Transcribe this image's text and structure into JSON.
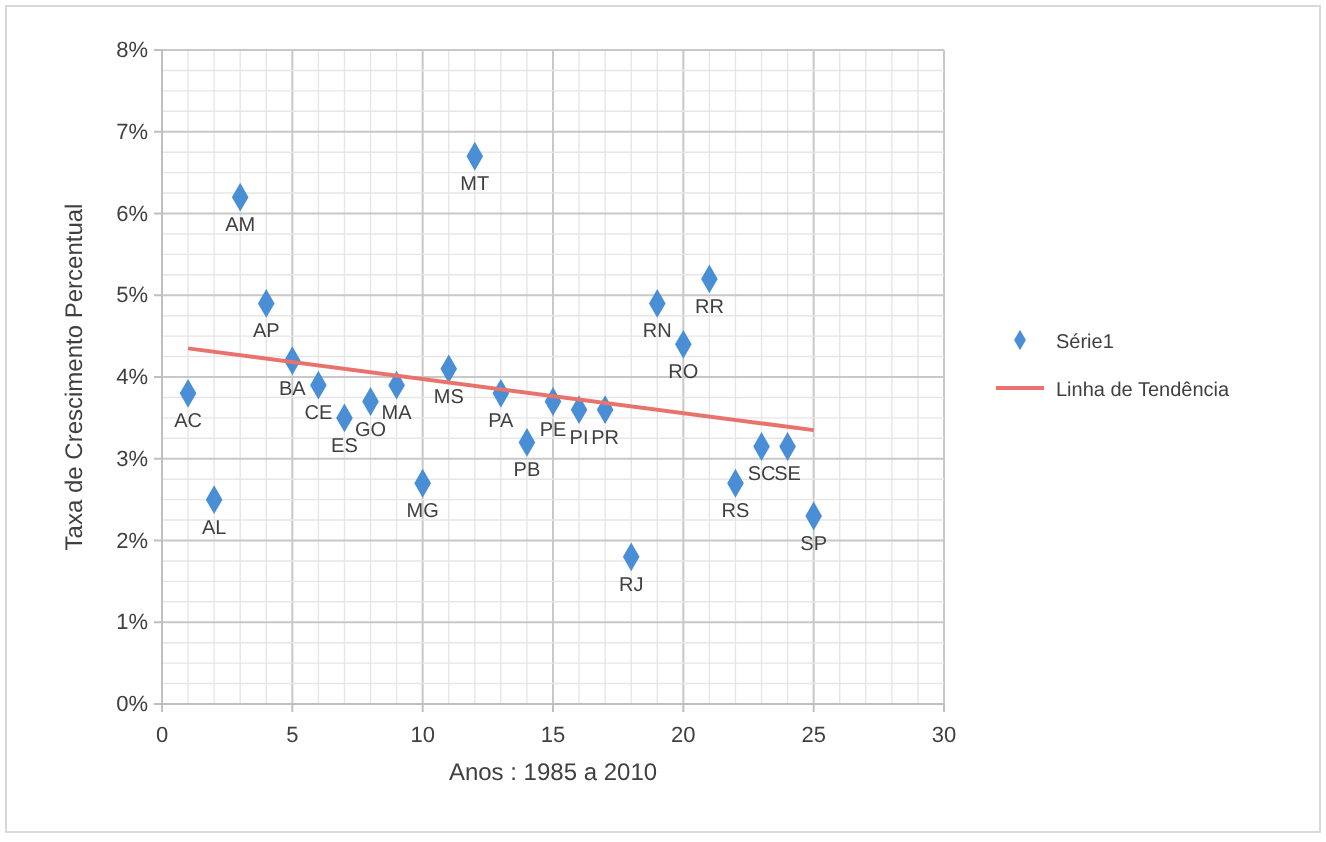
{
  "chart_data": {
    "type": "scatter",
    "xlabel": "Anos : 1985 a 2010",
    "ylabel": "Taxa de Crescimento Percentual",
    "xlim": [
      0,
      30
    ],
    "xticks": [
      0,
      5,
      10,
      15,
      20,
      25,
      30
    ],
    "ylim": [
      0,
      8
    ],
    "yticks": [
      {
        "value": 0,
        "label": "0%"
      },
      {
        "value": 1,
        "label": "1%"
      },
      {
        "value": 2,
        "label": "2%"
      },
      {
        "value": 3,
        "label": "3%"
      },
      {
        "value": 4,
        "label": "4%"
      },
      {
        "value": 5,
        "label": "5%"
      },
      {
        "value": 6,
        "label": "6%"
      },
      {
        "value": 7,
        "label": "7%"
      },
      {
        "value": 8,
        "label": "8%"
      }
    ],
    "grid": true,
    "legend": "right",
    "series": [
      {
        "name": "Série1",
        "marker": "diamond",
        "color": "#4a8fd6",
        "x": [
          1,
          2,
          3,
          4,
          5,
          6,
          7,
          8,
          9,
          10,
          11,
          12,
          13,
          14,
          15,
          16,
          17,
          18,
          19,
          20,
          21,
          22,
          23,
          24,
          25
        ],
        "values": [
          3.8,
          2.5,
          6.2,
          4.9,
          4.2,
          3.9,
          3.5,
          3.7,
          3.9,
          2.7,
          4.1,
          6.7,
          3.8,
          3.2,
          3.7,
          3.6,
          3.6,
          1.8,
          4.9,
          4.4,
          5.2,
          2.7,
          3.15,
          3.15,
          2.3
        ]
      },
      {
        "name": "Linha de Tendência",
        "type": "line",
        "color": "#e8736c",
        "x": [
          1,
          25
        ],
        "values": [
          4.35,
          3.35
        ],
        "marker": "none"
      }
    ],
    "annotations": [
      {
        "text": "AC",
        "x": 1,
        "y": 3.8
      },
      {
        "text": "AL",
        "x": 2,
        "y": 2.5
      },
      {
        "text": "AM",
        "x": 3,
        "y": 6.2
      },
      {
        "text": "AP",
        "x": 4,
        "y": 4.9
      },
      {
        "text": "BA",
        "x": 5,
        "y": 4.2
      },
      {
        "text": "CE",
        "x": 6,
        "y": 3.9
      },
      {
        "text": "ES",
        "x": 7,
        "y": 3.5
      },
      {
        "text": "GO",
        "x": 8,
        "y": 3.7
      },
      {
        "text": "MA",
        "x": 9,
        "y": 3.9
      },
      {
        "text": "MG",
        "x": 10,
        "y": 2.7
      },
      {
        "text": "MS",
        "x": 11,
        "y": 4.1
      },
      {
        "text": "MT",
        "x": 12,
        "y": 6.7
      },
      {
        "text": "PA",
        "x": 13,
        "y": 3.8
      },
      {
        "text": "PB",
        "x": 14,
        "y": 3.2
      },
      {
        "text": "PE",
        "x": 15,
        "y": 3.7
      },
      {
        "text": "PI",
        "x": 16,
        "y": 3.6
      },
      {
        "text": "PR",
        "x": 17,
        "y": 3.6
      },
      {
        "text": "RJ",
        "x": 18,
        "y": 1.8
      },
      {
        "text": "RN",
        "x": 19,
        "y": 4.9
      },
      {
        "text": "RO",
        "x": 20,
        "y": 4.4
      },
      {
        "text": "RR",
        "x": 21,
        "y": 5.2
      },
      {
        "text": "RS",
        "x": 22,
        "y": 2.7
      },
      {
        "text": "SC",
        "x": 23,
        "y": 3.15
      },
      {
        "text": "SE",
        "x": 24,
        "y": 3.15
      },
      {
        "text": "SP",
        "x": 25,
        "y": 2.3
      }
    ]
  }
}
